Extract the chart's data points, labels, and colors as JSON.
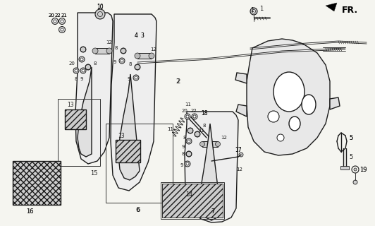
{
  "bg_color": "#f5f5f0",
  "line_color": "#1a1a1a",
  "fig_width": 5.32,
  "fig_height": 3.2,
  "dpi": 100,
  "fr_text": "FR.",
  "lw_main": 1.0,
  "lw_thin": 0.6,
  "lw_thick": 1.4
}
